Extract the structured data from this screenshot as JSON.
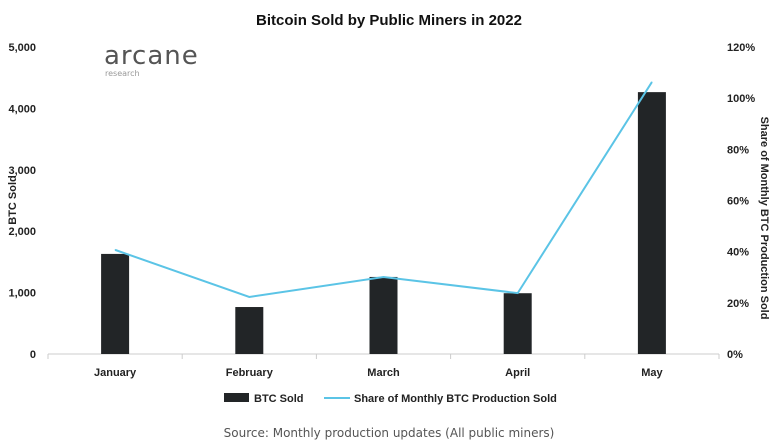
{
  "chart_data": {
    "type": "bar+line",
    "title": "Bitcoin Sold by Public Miners in 2022",
    "categories": [
      "January",
      "February",
      "March",
      "April",
      "May"
    ],
    "series": [
      {
        "name": "BTC Sold",
        "type": "bar",
        "axis": "left",
        "color": "#222527",
        "values": [
          1630,
          765,
          1255,
          990,
          4265
        ]
      },
      {
        "name": "Share of Monthly BTC Production Sold",
        "type": "line",
        "axis": "right",
        "color": "#5bc4e6",
        "values": [
          40.7,
          22.3,
          30.1,
          23.8,
          106.3
        ]
      }
    ],
    "ylabel": "BTC Sold",
    "y2label": "Share of Monthly BTC Production Sold",
    "ylim": [
      0,
      5000
    ],
    "y2lim": [
      0,
      120
    ],
    "yticks": [
      "0",
      "1,000",
      "2,000",
      "3,000",
      "4,000",
      "5,000"
    ],
    "y2ticks": [
      "0%",
      "20%",
      "40%",
      "60%",
      "80%",
      "100%",
      "120%"
    ],
    "grid": false,
    "legend": "bottom",
    "source": "Source: Monthly production updates (All public miners)"
  },
  "logo": {
    "name": "arcane",
    "sub": "research"
  }
}
